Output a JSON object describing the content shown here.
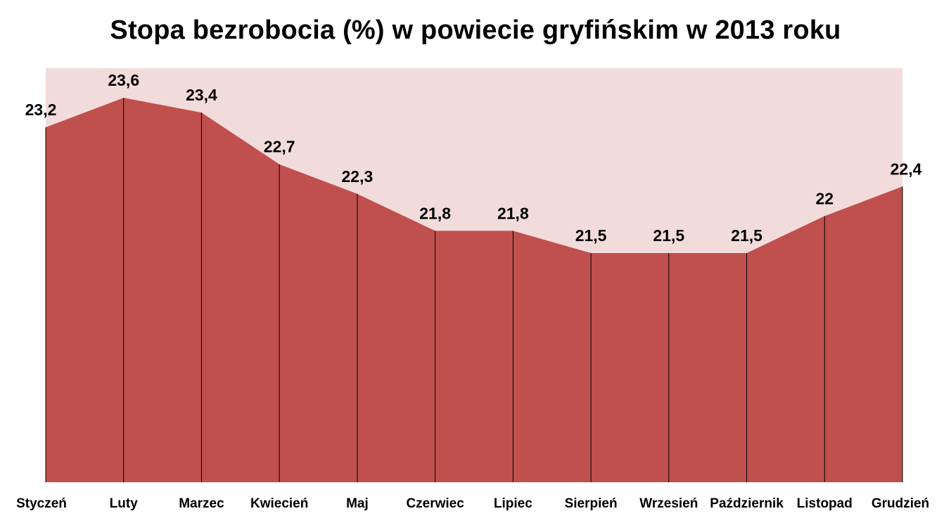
{
  "chart_data": {
    "type": "area",
    "title": "Stopa bezrobocia (%) w powiecie gryfińskim w 2013 roku",
    "xlabel": "",
    "ylabel": "",
    "categories": [
      "Styczeń",
      "Luty",
      "Marzec",
      "Kwiecień",
      "Maj",
      "Czerwiec",
      "Lipiec",
      "Sierpień",
      "Wrzesień",
      "Październik",
      "Listopad",
      "Grudzień"
    ],
    "values": [
      23.2,
      23.6,
      23.4,
      22.7,
      22.3,
      21.8,
      21.8,
      21.5,
      21.5,
      21.5,
      22,
      22.4
    ],
    "data_labels": [
      "23,2",
      "23,6",
      "23,4",
      "22,7",
      "22,3",
      "21,8",
      "21,8",
      "21,5",
      "21,5",
      "21,5",
      "22",
      "22,4"
    ],
    "ylim": [
      18.4,
      24.0
    ],
    "grid": false,
    "legend": "none",
    "colors": {
      "fill": "#C0504D",
      "plot_background": "#F2DCDB",
      "drop_lines": "#000000"
    }
  }
}
